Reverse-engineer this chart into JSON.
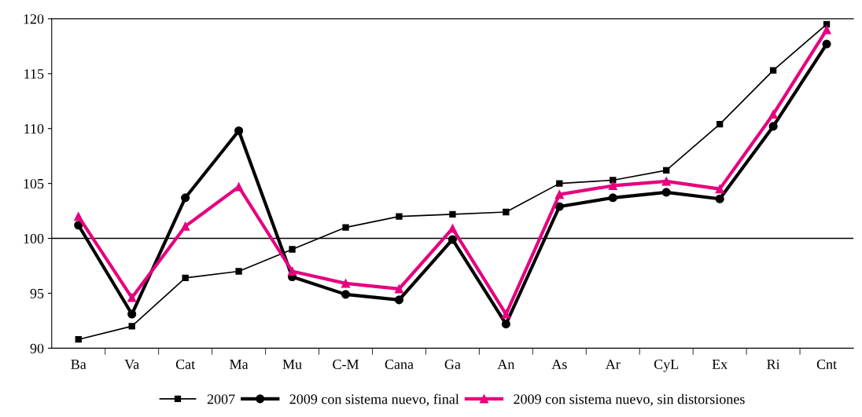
{
  "chart_data": {
    "type": "line",
    "categories": [
      "Ba",
      "Va",
      "Cat",
      "Ma",
      "Mu",
      "C-M",
      "Cana",
      "Ga",
      "An",
      "As",
      "Ar",
      "CyL",
      "Ex",
      "Ri",
      "Cnt"
    ],
    "series": [
      {
        "name": "2007",
        "color": "#000000",
        "marker": "square",
        "values": [
          90.8,
          92.0,
          96.4,
          97.0,
          99.0,
          101.0,
          102.0,
          102.2,
          102.4,
          105.0,
          105.3,
          106.2,
          110.4,
          115.3,
          119.5
        ]
      },
      {
        "name": "2009 con sistema nuevo, final",
        "color": "#000000",
        "marker": "circle",
        "values": [
          101.2,
          93.1,
          103.7,
          109.8,
          96.5,
          94.9,
          94.4,
          99.9,
          92.2,
          102.9,
          103.7,
          104.2,
          103.6,
          110.2,
          117.7
        ]
      },
      {
        "name": "2009 con sistema nuevo, sin distorsiones",
        "color": "#e6007e",
        "marker": "triangle",
        "values": [
          102.0,
          94.6,
          101.1,
          104.7,
          97.0,
          95.9,
          95.4,
          100.9,
          93.1,
          104.0,
          104.8,
          105.2,
          104.5,
          111.3,
          119.0
        ]
      }
    ],
    "ylim": [
      90,
      120
    ],
    "yticks": [
      90,
      95,
      100,
      105,
      110,
      115,
      120
    ],
    "ref_lines": [
      {
        "axis": "y",
        "value": 100,
        "color": "#000000"
      }
    ],
    "grid": false,
    "legend": "bottom",
    "line_style": "solid"
  }
}
